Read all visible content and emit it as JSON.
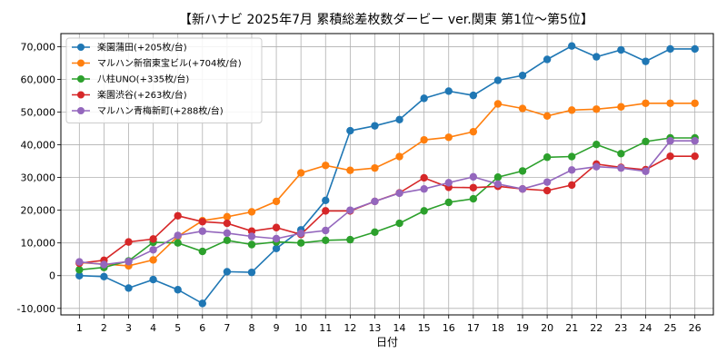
{
  "chart_data": {
    "type": "line",
    "title": "【新ハナビ 2025年7月 累積総差枚数ダービー ver.関東 第1位～第5位】",
    "xlabel": "日付",
    "ylabel": "",
    "x": [
      1,
      2,
      3,
      4,
      5,
      6,
      7,
      8,
      9,
      10,
      11,
      12,
      13,
      14,
      15,
      16,
      17,
      18,
      19,
      20,
      21,
      22,
      23,
      24,
      25,
      26
    ],
    "ylim": [
      -12000,
      74000
    ],
    "yticks": [
      -10000,
      0,
      10000,
      20000,
      30000,
      40000,
      50000,
      60000,
      70000
    ],
    "ytick_labels": [
      "-10,000",
      "0",
      "10,000",
      "20,000",
      "30,000",
      "40,000",
      "50,000",
      "60,000",
      "70,000"
    ],
    "grid": true,
    "legend_position": "top-left",
    "series": [
      {
        "name": "楽園蒲田(+205枚/台)",
        "color": "#1f77b4",
        "values": [
          0,
          -300,
          -3800,
          -1200,
          -4300,
          -8500,
          1200,
          1000,
          8300,
          14000,
          23000,
          44300,
          45800,
          47700,
          54200,
          56400,
          55100,
          59700,
          61200,
          66100,
          70200,
          66900,
          69000,
          65500,
          69300,
          69300
        ]
      },
      {
        "name": "マルハン新宿東宝ビル(+704枚/台)",
        "color": "#ff7f0e",
        "values": [
          4000,
          3500,
          3000,
          4800,
          12000,
          16800,
          18000,
          19500,
          22700,
          31400,
          33700,
          32200,
          32900,
          36400,
          41500,
          42300,
          44000,
          52500,
          51100,
          48800,
          50600,
          50900,
          51600,
          52700,
          52700,
          52700
        ]
      },
      {
        "name": "八柱UNO(+335枚/台)",
        "color": "#2ca02c",
        "values": [
          1800,
          2500,
          4500,
          10200,
          10000,
          7400,
          10800,
          9500,
          10300,
          10000,
          10800,
          11000,
          13300,
          16000,
          19800,
          22400,
          23500,
          30100,
          32000,
          36200,
          36400,
          40100,
          37300,
          41000,
          42100,
          42100
        ]
      },
      {
        "name": "楽園渋谷(+263枚/台)",
        "color": "#d62728",
        "values": [
          3800,
          4700,
          10300,
          11200,
          18300,
          16500,
          16000,
          13600,
          14700,
          12600,
          19800,
          19800,
          22700,
          25300,
          29900,
          27000,
          26900,
          27300,
          26500,
          26000,
          27700,
          34100,
          33100,
          32400,
          36500,
          36500
        ]
      },
      {
        "name": "マルハン青梅新町(+288枚/台)",
        "color": "#9467bd",
        "values": [
          4200,
          3400,
          4300,
          7900,
          12300,
          13600,
          13000,
          12000,
          11300,
          12900,
          13800,
          20000,
          22700,
          25200,
          26500,
          28400,
          30200,
          28000,
          26500,
          28600,
          32300,
          33300,
          32900,
          31900,
          41200,
          41200
        ]
      }
    ]
  }
}
